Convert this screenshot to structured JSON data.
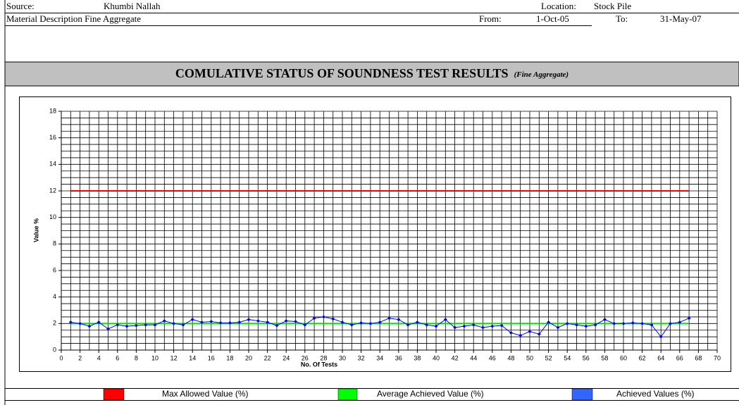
{
  "header": {
    "source_label": "Source:",
    "source": "Khumbi Nallah",
    "location_label": "Location:",
    "location": "Stock Pile",
    "material": "Material Description Fine Aggregate",
    "from_label": "From:",
    "from": "1-Oct-05",
    "to_label": "To:",
    "to": "31-May-07"
  },
  "chart_data": {
    "type": "line",
    "title": "COMULATIVE STATUS OF SOUNDNESS TEST RESULTS",
    "subtitle": "(Fine Aggregate)",
    "xlabel": "No. Of Tests",
    "ylabel": "Value %",
    "xlim": [
      0,
      70
    ],
    "xticks": [
      0,
      2,
      4,
      6,
      8,
      10,
      12,
      14,
      16,
      18,
      20,
      22,
      24,
      26,
      28,
      30,
      32,
      34,
      36,
      38,
      40,
      42,
      44,
      46,
      48,
      50,
      52,
      54,
      56,
      58,
      60,
      62,
      64,
      66,
      68,
      70
    ],
    "ylim": [
      0,
      18
    ],
    "yticks": [
      0,
      2,
      4,
      6,
      8,
      10,
      12,
      14,
      16,
      18
    ],
    "grid": true,
    "minor_grid": {
      "x": 1,
      "y": 0.5
    },
    "series": [
      {
        "name": "Max Allowed Value (%)",
        "color": "#ff0000",
        "legend_color": "#ff0000",
        "markers": false,
        "x": [
          1,
          67
        ],
        "values": [
          12,
          12
        ]
      },
      {
        "name": "Average Achieved Value (%)",
        "color": "#00dd00",
        "legend_color": "#00ff00",
        "markers": false,
        "x": [
          1,
          67
        ],
        "values": [
          2,
          2
        ]
      },
      {
        "name": "Achieved Values (%)",
        "color": "#0000ff",
        "legend_color": "#3366ff",
        "markers": true,
        "x": [
          1,
          2,
          3,
          4,
          5,
          6,
          7,
          8,
          9,
          10,
          11,
          12,
          13,
          14,
          15,
          16,
          17,
          18,
          19,
          20,
          21,
          22,
          23,
          24,
          25,
          26,
          27,
          28,
          29,
          30,
          31,
          32,
          33,
          34,
          35,
          36,
          37,
          38,
          39,
          40,
          41,
          42,
          43,
          44,
          45,
          46,
          47,
          48,
          49,
          50,
          51,
          52,
          53,
          54,
          55,
          56,
          57,
          58,
          59,
          60,
          61,
          62,
          63,
          64,
          65,
          66,
          67
        ],
        "values": [
          2.1,
          2.0,
          1.8,
          2.1,
          1.6,
          1.9,
          1.8,
          1.85,
          1.9,
          1.9,
          2.2,
          2.0,
          1.9,
          2.3,
          2.1,
          2.15,
          2.05,
          2.05,
          2.1,
          2.3,
          2.2,
          2.1,
          1.85,
          2.2,
          2.15,
          1.9,
          2.4,
          2.5,
          2.35,
          2.1,
          1.9,
          2.05,
          2.0,
          2.1,
          2.4,
          2.3,
          1.9,
          2.1,
          1.9,
          1.8,
          2.3,
          1.7,
          1.8,
          1.9,
          1.7,
          1.8,
          1.85,
          1.3,
          1.1,
          1.4,
          1.2,
          2.1,
          1.7,
          2.0,
          1.9,
          1.8,
          1.9,
          2.3,
          2.0,
          2.0,
          2.05,
          2.0,
          1.9,
          1.0,
          2.0,
          2.1,
          2.4
        ]
      }
    ]
  }
}
